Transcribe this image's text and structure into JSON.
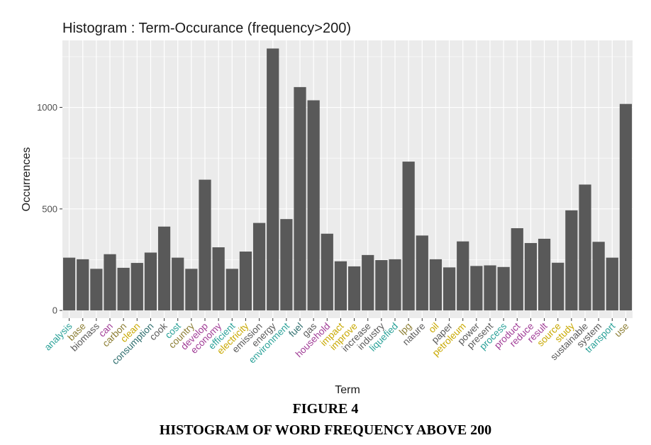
{
  "chart_data": {
    "type": "bar",
    "title": "Histogram : Term-Occurance (frequency>200)",
    "xlabel": "Term",
    "ylabel": "Occurrences",
    "ylim": [
      -38,
      1330
    ],
    "yticks": [
      0,
      500,
      1000
    ],
    "grid": true,
    "bar_color": "#595959",
    "panel_color": "#ebebeb",
    "categories": [
      "analysis",
      "base",
      "biomass",
      "can",
      "carbon",
      "clean",
      "consumption",
      "cook",
      "cost",
      "country",
      "develop",
      "economy",
      "efficient",
      "electricity",
      "emission",
      "energy",
      "environment",
      "fuel",
      "gas",
      "household",
      "impact",
      "improve",
      "increase",
      "industry",
      "liquefied",
      "lpg",
      "nature",
      "oil",
      "paper",
      "petroleum",
      "power",
      "present",
      "process",
      "product",
      "reduce",
      "result",
      "source",
      "study",
      "sustainable",
      "system",
      "transport",
      "use"
    ],
    "values": [
      260,
      252,
      205,
      277,
      210,
      234,
      285,
      413,
      260,
      205,
      644,
      311,
      205,
      290,
      431,
      1290,
      450,
      1100,
      1035,
      378,
      242,
      217,
      273,
      248,
      252,
      733,
      369,
      252,
      212,
      340,
      219,
      222,
      214,
      405,
      332,
      353,
      235,
      493,
      620,
      338,
      260,
      1017
    ],
    "tick_colors": [
      "#2aa198",
      "#8b7d32",
      "#5a5a5a",
      "#a03c96",
      "#8b7d32",
      "#c8a800",
      "#2e6e6e",
      "#5a5a5a",
      "#2aa198",
      "#8b7d32",
      "#a03c96",
      "#a03c96",
      "#2aa198",
      "#c8a800",
      "#5a5a5a",
      "#5a5a5a",
      "#2aa198",
      "#2e6e6e",
      "#5a5a5a",
      "#a03c96",
      "#c8a800",
      "#c8a800",
      "#5a5a5a",
      "#5a5a5a",
      "#2aa198",
      "#8b7d32",
      "#5a5a5a",
      "#c8a800",
      "#5a5a5a",
      "#c8a800",
      "#5a5a5a",
      "#5a5a5a",
      "#2aa198",
      "#a03c96",
      "#a03c96",
      "#a03c96",
      "#c8a800",
      "#c8a800",
      "#5a5a5a",
      "#5a5a5a",
      "#2aa198",
      "#8b7d32"
    ]
  },
  "caption": {
    "figure_number": "FIGURE 4",
    "figure_title": "HISTOGRAM OF WORD FREQUENCY ABOVE 200"
  }
}
